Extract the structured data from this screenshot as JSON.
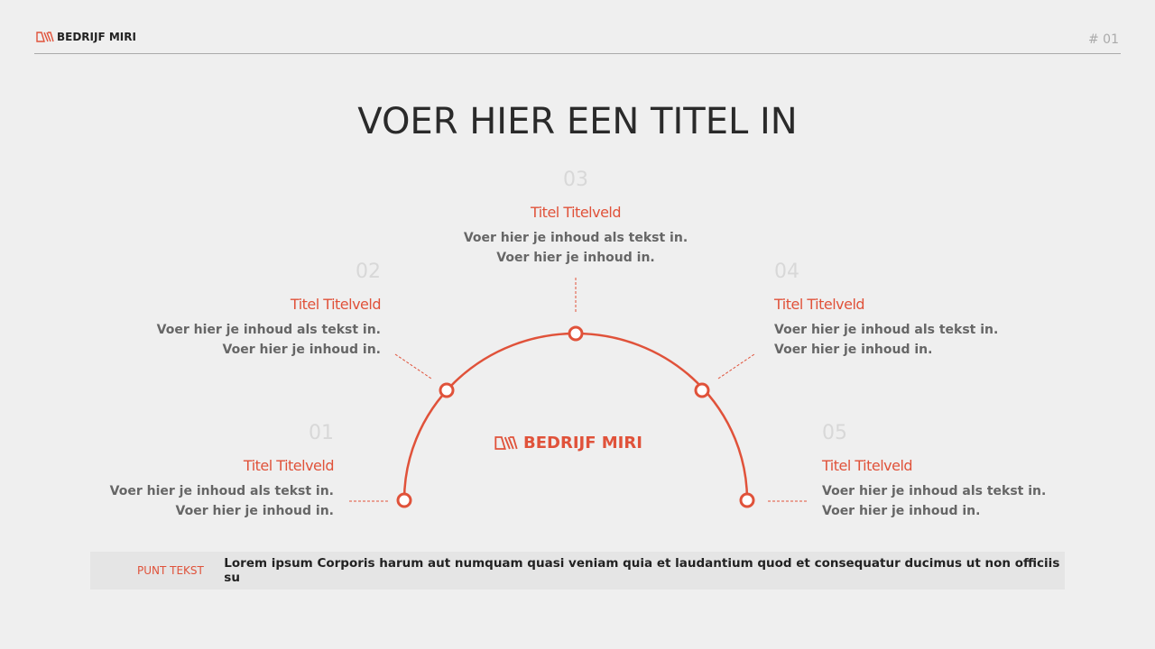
{
  "header": {
    "brand": "BEDRIJF MIRI",
    "page": "# 01"
  },
  "title": "VOER HIER EEN TITEL IN",
  "center_brand": "BEDRIJF MIRI",
  "accent": "#e0523a",
  "items": [
    {
      "num": "01",
      "title": "Titel Titelveld",
      "line1": "Voer hier je inhoud als tekst in.",
      "line2": "Voer hier je inhoud in."
    },
    {
      "num": "02",
      "title": "Titel Titelveld",
      "line1": "Voer hier je inhoud als tekst in.",
      "line2": "Voer hier je inhoud in."
    },
    {
      "num": "03",
      "title": "Titel Titelveld",
      "line1": "Voer hier je inhoud als tekst in.",
      "line2": "Voer hier je inhoud in."
    },
    {
      "num": "04",
      "title": "Titel Titelveld",
      "line1": "Voer hier je inhoud als tekst in.",
      "line2": "Voer hier je inhoud in."
    },
    {
      "num": "05",
      "title": "Titel Titelveld",
      "line1": "Voer hier je inhoud als tekst in.",
      "line2": "Voer hier je inhoud in."
    }
  ],
  "footer": {
    "label": "PUNT TEKST",
    "text": "Lorem ipsum Corporis harum aut numquam quasi veniam quia et laudantium quod et consequatur ducimus ut non officiis su"
  }
}
